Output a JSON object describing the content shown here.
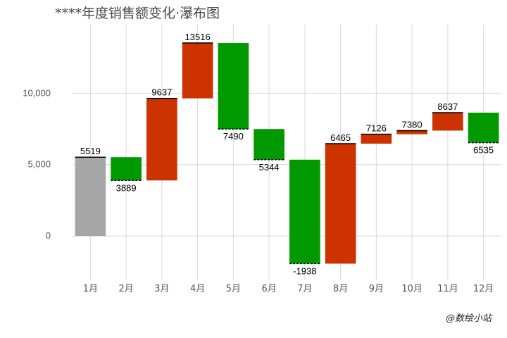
{
  "title": "****年度销售额变化·瀑布图",
  "watermark": "@数绘小站",
  "chart_data": {
    "type": "bar",
    "subtype": "waterfall",
    "title": "****年度销售额变化·瀑布图",
    "xlabel": "",
    "ylabel": "",
    "categories": [
      "1月",
      "2月",
      "3月",
      "4月",
      "5月",
      "6月",
      "7月",
      "8月",
      "9月",
      "10月",
      "11月",
      "12月"
    ],
    "values": [
      5519,
      3889,
      9637,
      13516,
      7490,
      5344,
      -1938,
      6465,
      7126,
      7380,
      8637,
      6535
    ],
    "ylim": [
      -3100,
      14800
    ],
    "yticks": [
      0,
      5000,
      10000
    ],
    "ytick_labels": [
      "0",
      "5,000",
      "10,000"
    ],
    "grid": true,
    "colors": {
      "start": "#a6a6a6",
      "increase": "#cc3300",
      "decrease": "#009900",
      "grid": "#d9d9d9"
    }
  }
}
